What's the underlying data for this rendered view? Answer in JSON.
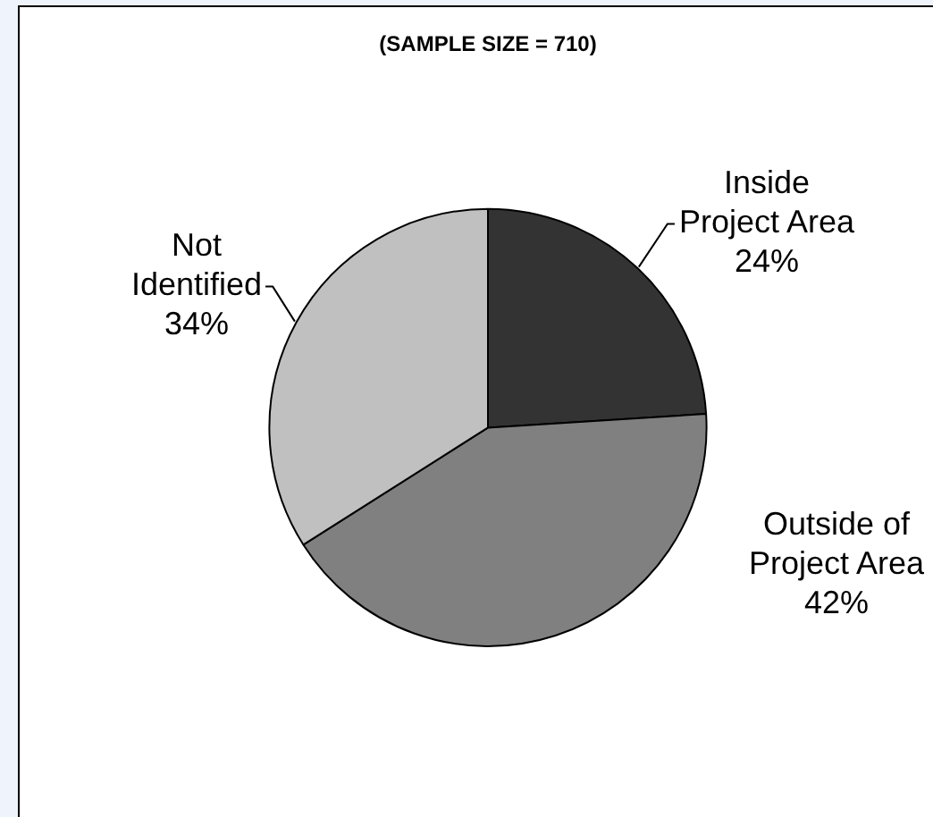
{
  "chart_data": {
    "type": "pie",
    "title": "(SAMPLE SIZE = 710)",
    "categories": [
      "Inside Project Area",
      "Outside of Project Area",
      "Not Identified"
    ],
    "values": [
      24,
      42,
      34
    ],
    "colors": [
      "#333333",
      "#808080",
      "#c0c0c0"
    ],
    "value_labels": [
      "24%",
      "42%",
      "34%"
    ]
  }
}
